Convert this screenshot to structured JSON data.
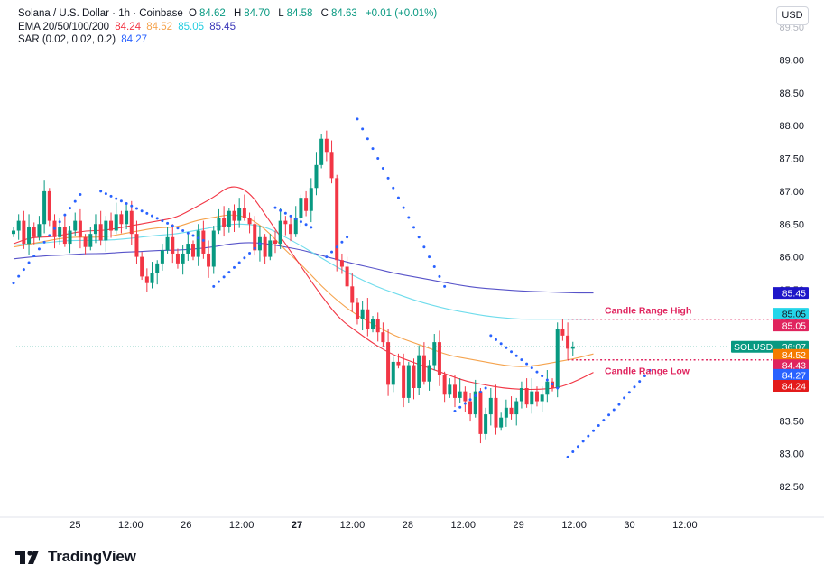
{
  "header": {
    "symbol_line": "Solana / U.S. Dollar · 1h · Coinbase",
    "ohlc": [
      {
        "label": "O",
        "value": "84.62"
      },
      {
        "label": "H",
        "value": "84.70"
      },
      {
        "label": "L",
        "value": "84.58"
      },
      {
        "label": "C",
        "value": "84.63"
      }
    ],
    "change": "+0.01 (+0.01%)",
    "ema_label": "EMA 20/50/100/200",
    "ema_values": [
      "84.24",
      "84.52",
      "85.05",
      "85.45"
    ],
    "sar_label": "SAR (0.02, 0.02, 0.2)",
    "sar_value": "84.27"
  },
  "currency_button": "USD",
  "brand": "TradingView",
  "colors": {
    "up": "#089981",
    "down": "#f23645",
    "ema20": "#f23645",
    "ema50": "#f5a34d",
    "ema100": "#6fdcec",
    "ema200": "#5753c9",
    "sar": "#2962ff",
    "annotation": "#e0245e"
  },
  "chart_data": {
    "type": "candlestick",
    "timeframe": "1h",
    "y_ticks": [
      82.5,
      83.0,
      83.5,
      84.0,
      84.5,
      85.0,
      85.5,
      86.0,
      86.5,
      87.0,
      87.5,
      88.0,
      88.5,
      89.0
    ],
    "ylim": [
      82.08,
      89.7
    ],
    "x_ticks": [
      {
        "label": "25",
        "h": 12,
        "bold": false
      },
      {
        "label": "12:00",
        "h": 24,
        "bold": false
      },
      {
        "label": "26",
        "h": 36,
        "bold": false
      },
      {
        "label": "12:00",
        "h": 48,
        "bold": false
      },
      {
        "label": "27",
        "h": 60,
        "bold": true
      },
      {
        "label": "12:00",
        "h": 72,
        "bold": false
      },
      {
        "label": "28",
        "h": 84,
        "bold": false
      },
      {
        "label": "12:00",
        "h": 96,
        "bold": false
      },
      {
        "label": "29",
        "h": 108,
        "bold": false
      },
      {
        "label": "12:00",
        "h": 120,
        "bold": false
      },
      {
        "label": "30",
        "h": 132,
        "bold": false
      },
      {
        "label": "12:00",
        "h": 144,
        "bold": false
      }
    ],
    "candles_close": [
      86.4,
      86.55,
      86.2,
      86.45,
      86.3,
      86.5,
      87.0,
      86.55,
      86.3,
      86.45,
      86.2,
      86.4,
      86.55,
      86.3,
      86.15,
      86.35,
      86.5,
      86.25,
      86.55,
      86.4,
      86.65,
      86.5,
      86.7,
      86.35,
      86.0,
      85.7,
      85.6,
      85.75,
      85.9,
      86.1,
      86.3,
      86.05,
      85.9,
      86.05,
      86.2,
      86.0,
      86.4,
      86.05,
      85.85,
      86.4,
      86.6,
      86.45,
      86.7,
      86.55,
      86.75,
      86.6,
      86.5,
      86.1,
      86.3,
      86.0,
      86.25,
      86.2,
      86.55,
      86.5,
      86.35,
      86.6,
      86.9,
      86.7,
      87.05,
      87.4,
      87.8,
      87.6,
      87.2,
      85.95,
      85.85,
      85.55,
      85.3,
      85.05,
      85.2,
      84.9,
      85.05,
      84.85,
      84.7,
      84.05,
      84.4,
      84.35,
      83.85,
      84.35,
      84.0,
      84.5,
      84.1,
      84.35,
      84.7,
      84.2,
      83.9,
      84.05,
      83.85,
      83.95,
      83.8,
      83.6,
      83.95,
      83.3,
      83.6,
      83.85,
      83.4,
      83.55,
      83.7,
      83.6,
      83.8,
      84.0,
      83.75,
      83.95,
      83.8,
      83.9,
      84.1,
      84.0,
      84.9,
      84.8,
      84.6,
      84.63
    ],
    "ema20": [
      86.2,
      86.3,
      86.3,
      86.35,
      86.4,
      86.4,
      86.45,
      86.5,
      86.55,
      86.6,
      86.75,
      86.9,
      87.1,
      87.0,
      86.6,
      86.2,
      85.8,
      85.4,
      85.05,
      84.85,
      84.65,
      84.5,
      84.4,
      84.3,
      84.2,
      84.1,
      84.05,
      84.0,
      83.98,
      83.98,
      84.0,
      84.1,
      84.24
    ],
    "ema50": [
      86.15,
      86.2,
      86.25,
      86.3,
      86.3,
      86.3,
      86.35,
      86.4,
      86.45,
      86.45,
      86.55,
      86.6,
      86.65,
      86.6,
      86.4,
      86.1,
      85.85,
      85.55,
      85.3,
      85.1,
      84.95,
      84.8,
      84.7,
      84.6,
      84.5,
      84.45,
      84.4,
      84.35,
      84.32,
      84.35,
      84.4,
      84.45,
      84.52
    ],
    "ema100": [
      86.18,
      86.2,
      86.22,
      86.25,
      86.25,
      86.25,
      86.27,
      86.3,
      86.33,
      86.35,
      86.4,
      86.45,
      86.5,
      86.5,
      86.45,
      86.3,
      86.15,
      85.98,
      85.82,
      85.68,
      85.55,
      85.45,
      85.35,
      85.27,
      85.2,
      85.15,
      85.1,
      85.07,
      85.05,
      85.05,
      85.05,
      85.05,
      85.05
    ],
    "ema200": [
      85.97,
      86.0,
      86.02,
      86.03,
      86.05,
      86.05,
      86.07,
      86.08,
      86.1,
      86.1,
      86.12,
      86.15,
      86.2,
      86.22,
      86.2,
      86.15,
      86.1,
      86.02,
      85.95,
      85.88,
      85.82,
      85.75,
      85.7,
      85.65,
      85.6,
      85.55,
      85.52,
      85.5,
      85.48,
      85.47,
      85.46,
      85.45,
      85.45
    ],
    "sar_segments": [
      {
        "from": 0,
        "to": 13,
        "start": 85.6,
        "end": 86.95,
        "trend": "up"
      },
      {
        "from": 17,
        "to": 37,
        "start": 87.0,
        "end": 86.25,
        "trend": "down"
      },
      {
        "from": 39,
        "to": 48,
        "start": 85.55,
        "end": 86.2,
        "trend": "up"
      },
      {
        "from": 51,
        "to": 58,
        "start": 86.75,
        "end": 86.45,
        "trend": "down"
      },
      {
        "from": 61,
        "to": 65,
        "start": 86.0,
        "end": 86.3,
        "trend": "up"
      },
      {
        "from": 67,
        "to": 84,
        "start": 88.1,
        "end": 85.55,
        "trend": "down"
      },
      {
        "from": 86,
        "to": 92,
        "start": 83.65,
        "end": 84.0,
        "trend": "up"
      },
      {
        "from": 93,
        "to": 106,
        "start": 84.8,
        "end": 84.0,
        "trend": "down"
      },
      {
        "from": 108,
        "to": 118,
        "start": 82.95,
        "end": 83.75,
        "trend": "up"
      },
      {
        "from": 119,
        "to": 124,
        "start": 83.85,
        "end": 84.27,
        "trend": "up"
      }
    ],
    "annotations": [
      {
        "label": "Candle Range High",
        "value": 85.05
      },
      {
        "label": "Candle Range Low",
        "value": 84.43
      }
    ],
    "price_labels": [
      {
        "text": "85.45",
        "value": 85.45,
        "bg": "#1e16c9",
        "fg": "#ffffff"
      },
      {
        "text": "85.05",
        "value": 85.05,
        "bg": "#25d6ea",
        "fg": "#131722"
      },
      {
        "text": "85.05",
        "value": 85.05,
        "bg": "#e0245e",
        "fg": "#ffffff"
      },
      {
        "text": "SOLUSD",
        "value": 84.63,
        "bg": "#089981",
        "fg": "#ffffff",
        "extra": "36:07"
      },
      {
        "text": "84.52",
        "value": 84.52,
        "bg": "#f57c00",
        "fg": "#ffffff"
      },
      {
        "text": "84.43",
        "value": 84.43,
        "bg": "#e0245e",
        "fg": "#ffffff"
      },
      {
        "text": "84.27",
        "value": 84.27,
        "bg": "#2962ff",
        "fg": "#ffffff"
      },
      {
        "text": "84.24",
        "value": 84.24,
        "bg": "#e31b1b",
        "fg": "#ffffff"
      }
    ]
  }
}
